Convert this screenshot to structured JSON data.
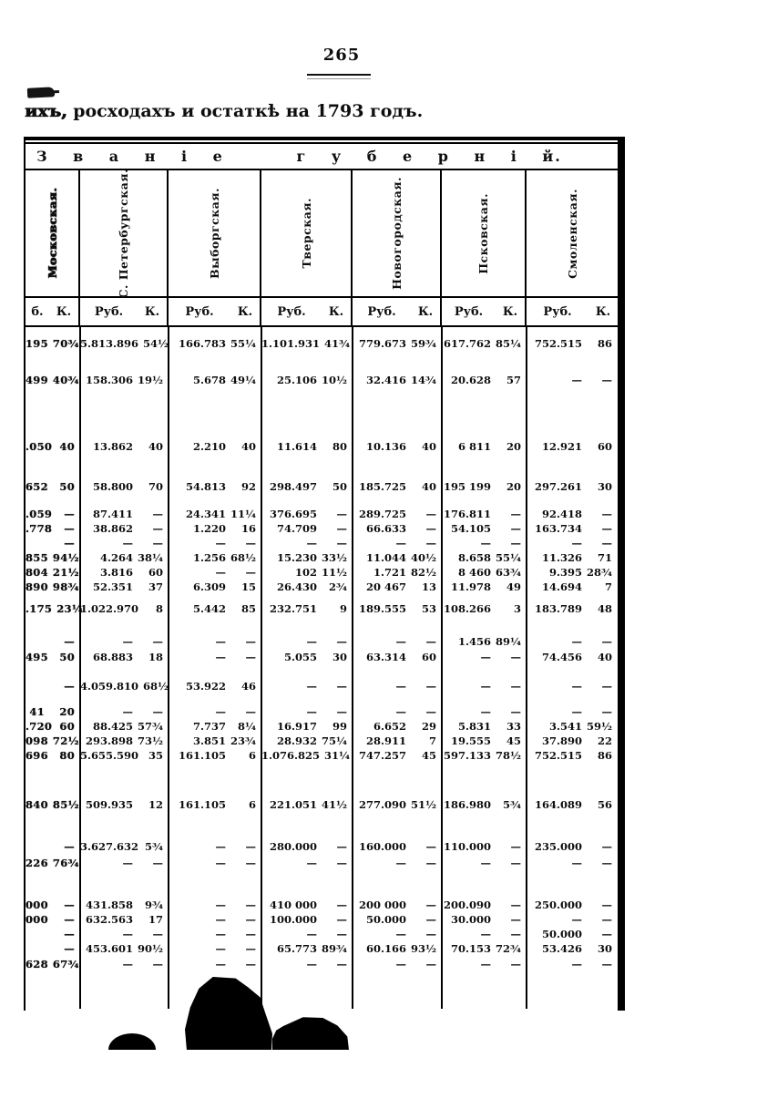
{
  "page": {
    "number": "265",
    "title_lead": "ихъ,",
    "title_rest": " росходахъ и остаткѣ на 1793 годъ."
  },
  "table": {
    "title": "З в а н і е   г у б е р н і й.",
    "columns": [
      {
        "label": "Московская.",
        "rub": "б.",
        "kop": "К."
      },
      {
        "label": "С. Петербургская.",
        "rub": "Руб.",
        "kop": "К."
      },
      {
        "label": "Выборгская.",
        "rub": "Руб.",
        "kop": "К."
      },
      {
        "label": "Тверская.",
        "rub": "Руб.",
        "kop": "К."
      },
      {
        "label": "Новогородская.",
        "rub": "Руб.",
        "kop": "К."
      },
      {
        "label": "Псковская.",
        "rub": "Руб.",
        "kop": "К."
      },
      {
        "label": "Смоленская.",
        "rub": "Руб.",
        "kop": "К."
      }
    ],
    "rows": [
      [
        [
          "195",
          "70¾"
        ],
        [
          "5.813.896",
          "54½"
        ],
        [
          "166.783",
          "55¼"
        ],
        [
          "1.101.931",
          "41¾"
        ],
        [
          "779.673",
          "59¾"
        ],
        [
          "617.762",
          "85¼"
        ],
        [
          "752.515",
          "86"
        ]
      ],
      [
        [
          "499",
          "40¾"
        ],
        [
          "158.306",
          "19½"
        ],
        [
          "5.678",
          "49¼"
        ],
        [
          "25.106",
          "10½"
        ],
        [
          "32.416",
          "14¾"
        ],
        [
          "20.628",
          "57"
        ],
        [
          "—",
          "—"
        ]
      ],
      [
        [
          ".050",
          "40"
        ],
        [
          "13.862",
          "40"
        ],
        [
          "2.210",
          "40"
        ],
        [
          "11.614",
          "80"
        ],
        [
          "10.136",
          "40"
        ],
        [
          "6 811",
          "20"
        ],
        [
          "12.921",
          "60"
        ]
      ],
      [
        [
          "652",
          "50"
        ],
        [
          "58.800",
          "70"
        ],
        [
          "54.813",
          "92"
        ],
        [
          "298.497",
          "50"
        ],
        [
          "185.725",
          "40"
        ],
        [
          "195 199",
          "20"
        ],
        [
          "297.261",
          "30"
        ]
      ],
      [
        [
          ".059",
          "—"
        ],
        [
          "87.411",
          "—"
        ],
        [
          "24.341",
          "11¼"
        ],
        [
          "376.695",
          "—"
        ],
        [
          "289.725",
          "—"
        ],
        [
          "176.811",
          "—"
        ],
        [
          "92.418",
          "—"
        ]
      ],
      [
        [
          ".778",
          "—"
        ],
        [
          "38.862",
          "—"
        ],
        [
          "1.220",
          "16"
        ],
        [
          "74.709",
          "—"
        ],
        [
          "66.633",
          "—"
        ],
        [
          "54.105",
          "—"
        ],
        [
          "163.734",
          "—"
        ]
      ],
      [
        [
          "",
          "—"
        ],
        [
          "—",
          "—"
        ],
        [
          "—",
          "—"
        ],
        [
          "—",
          "—"
        ],
        [
          "—",
          "—"
        ],
        [
          "—",
          "—"
        ],
        [
          "—",
          "—"
        ]
      ],
      [
        [
          "855",
          "94½"
        ],
        [
          "4.264",
          "38¼"
        ],
        [
          "1.256",
          "68½"
        ],
        [
          "15.230",
          "33½"
        ],
        [
          "11.044",
          "40½"
        ],
        [
          "8.658",
          "55¼"
        ],
        [
          "11.326",
          "71"
        ]
      ],
      [
        [
          "804",
          "21½"
        ],
        [
          "3.816",
          "60"
        ],
        [
          "—",
          "—"
        ],
        [
          "102",
          "11½"
        ],
        [
          "1.721",
          "82½"
        ],
        [
          "8 460",
          "63¾"
        ],
        [
          "9.395",
          "28¾"
        ]
      ],
      [
        [
          "890",
          "98¾"
        ],
        [
          "52.351",
          "37"
        ],
        [
          "6.309",
          "15"
        ],
        [
          "26.430",
          "2¾"
        ],
        [
          "20 467",
          "13"
        ],
        [
          "11.978",
          "49"
        ],
        [
          "14.694",
          "7"
        ]
      ],
      [
        [
          ".175",
          "23¼"
        ],
        [
          "1.022.970",
          "8"
        ],
        [
          "5.442",
          "85"
        ],
        [
          "232.751",
          "9"
        ],
        [
          "189.555",
          "53"
        ],
        [
          "108.266",
          "3"
        ],
        [
          "183.789",
          "48"
        ]
      ],
      [
        [
          "",
          "—"
        ],
        [
          "—",
          "—"
        ],
        [
          "—",
          "—"
        ],
        [
          "—",
          "—"
        ],
        [
          "—",
          "—"
        ],
        [
          "1.456",
          "89¼"
        ],
        [
          "—",
          "—"
        ]
      ],
      [
        [
          "495",
          "50"
        ],
        [
          "68.883",
          "18"
        ],
        [
          "—",
          "—"
        ],
        [
          "5.055",
          "30"
        ],
        [
          "63.314",
          "60"
        ],
        [
          "—",
          "—"
        ],
        [
          "74.456",
          "40"
        ]
      ],
      [
        [
          "",
          "—"
        ],
        [
          "4.059.810",
          "68½"
        ],
        [
          "53.922",
          "46"
        ],
        [
          "—",
          "—"
        ],
        [
          "—",
          "—"
        ],
        [
          "—",
          "—"
        ],
        [
          "—",
          "—"
        ]
      ],
      [
        [
          "41",
          "20"
        ],
        [
          "—",
          "—"
        ],
        [
          "—",
          "—"
        ],
        [
          "—",
          "—"
        ],
        [
          "—",
          "—"
        ],
        [
          "—",
          "—"
        ],
        [
          "—",
          "—"
        ]
      ],
      [
        [
          ".720",
          "60"
        ],
        [
          "88.425",
          "57¾"
        ],
        [
          "7.737",
          "8¼"
        ],
        [
          "16.917",
          "99"
        ],
        [
          "6.652",
          "29"
        ],
        [
          "5.831",
          "33"
        ],
        [
          "3.541",
          "59½"
        ]
      ],
      [
        [
          "098",
          "72½"
        ],
        [
          "293.898",
          "73½"
        ],
        [
          "3.851",
          "23¾"
        ],
        [
          "28.932",
          "75¼"
        ],
        [
          "28.911",
          "7"
        ],
        [
          "19.555",
          "45"
        ],
        [
          "37.890",
          "22"
        ]
      ],
      [
        [
          "696",
          "80"
        ],
        [
          "5.655.590",
          "35"
        ],
        [
          "161.105",
          "6"
        ],
        [
          "1.076.825",
          "31¼"
        ],
        [
          "747.257",
          "45"
        ],
        [
          "597.133",
          "78½"
        ],
        [
          "752.515",
          "86"
        ]
      ],
      [
        [
          "840",
          "85½"
        ],
        [
          "509.935",
          "12"
        ],
        [
          "161.105",
          "6"
        ],
        [
          "221.051",
          "41½"
        ],
        [
          "277.090",
          "51½"
        ],
        [
          "186.980",
          "5¾"
        ],
        [
          "164.089",
          "56"
        ]
      ],
      [
        [
          "",
          "—"
        ],
        [
          "3.627.632",
          "5¾"
        ],
        [
          "—",
          "—"
        ],
        [
          "280.000",
          "—"
        ],
        [
          "160.000",
          "—"
        ],
        [
          "110.000",
          "—"
        ],
        [
          "235.000",
          "—"
        ]
      ],
      [
        [
          "226",
          "76¾"
        ],
        [
          "—",
          "—"
        ],
        [
          "—",
          "—"
        ],
        [
          "—",
          "—"
        ],
        [
          "—",
          "—"
        ],
        [
          "—",
          "—"
        ],
        [
          "—",
          "—"
        ]
      ],
      [
        [
          "000",
          "—"
        ],
        [
          "431.858",
          "9¾"
        ],
        [
          "—",
          "—"
        ],
        [
          "410 000",
          "—"
        ],
        [
          "200 000",
          "—"
        ],
        [
          "200.090",
          "—"
        ],
        [
          "250.000",
          "—"
        ]
      ],
      [
        [
          "000",
          "—"
        ],
        [
          "632.563",
          "17"
        ],
        [
          "—",
          "—"
        ],
        [
          "100.000",
          "—"
        ],
        [
          "50.000",
          "—"
        ],
        [
          "30.000",
          "—"
        ],
        [
          "—",
          "—"
        ]
      ],
      [
        [
          "",
          "—"
        ],
        [
          "—",
          "—"
        ],
        [
          "—",
          "—"
        ],
        [
          "—",
          "—"
        ],
        [
          "—",
          "—"
        ],
        [
          "—",
          "—"
        ],
        [
          "50.000",
          "—"
        ]
      ],
      [
        [
          "",
          "—"
        ],
        [
          "453.601",
          "90½"
        ],
        [
          "—",
          "—"
        ],
        [
          "65.773",
          "89¾"
        ],
        [
          "60.166",
          "93½"
        ],
        [
          "70.153",
          "72¾"
        ],
        [
          "53.426",
          "30"
        ]
      ],
      [
        [
          "628",
          "67¾"
        ],
        [
          "—",
          "—"
        ],
        [
          "—",
          "—"
        ],
        [
          "—",
          "—"
        ],
        [
          "—",
          "—"
        ],
        [
          "—",
          "—"
        ],
        [
          "—",
          "—"
        ]
      ]
    ]
  }
}
